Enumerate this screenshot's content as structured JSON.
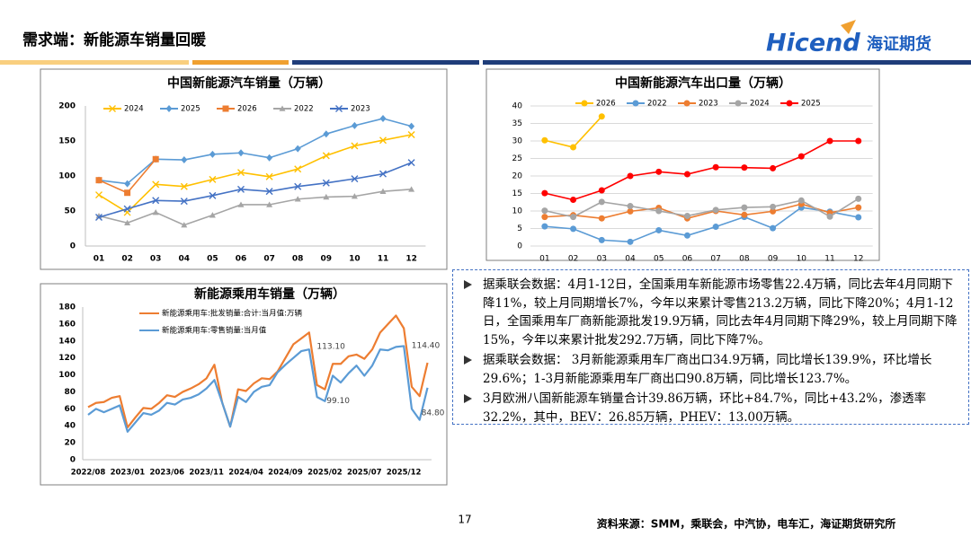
{
  "header": {
    "title": "需求端：新能源车销量回暖",
    "logo_latin": "Hicend",
    "logo_cn": "海证期货"
  },
  "chart_data": [
    {
      "type": "line",
      "title": "中国新能源汽车销量（万辆）",
      "categories": [
        "01",
        "02",
        "03",
        "04",
        "05",
        "06",
        "07",
        "08",
        "09",
        "10",
        "11",
        "12"
      ],
      "ylim": [
        0,
        200
      ],
      "yticks": [
        0,
        50,
        100,
        150,
        200
      ],
      "grid": false,
      "series": [
        {
          "name": "2024",
          "color": "#ffc000",
          "marker": "x",
          "values": [
            73,
            48,
            88,
            85,
            95,
            105,
            99,
            110,
            129,
            143,
            151,
            159
          ]
        },
        {
          "name": "2025",
          "color": "#5b9bd5",
          "marker": "diamond",
          "values": [
            94,
            89,
            124,
            123,
            131,
            133,
            126,
            139,
            160,
            172,
            182,
            171
          ]
        },
        {
          "name": "2026",
          "color": "#ed7d31",
          "marker": "square",
          "values": [
            94,
            76,
            124,
            null,
            null,
            null,
            null,
            null,
            null,
            null,
            null,
            null
          ]
        },
        {
          "name": "2022",
          "color": "#a5a5a5",
          "marker": "triangle",
          "values": [
            43,
            33,
            48,
            30,
            44,
            59,
            59,
            67,
            70,
            71,
            78,
            81
          ]
        },
        {
          "name": "2023",
          "color": "#4472c4",
          "marker": "x",
          "values": [
            41,
            53,
            65,
            64,
            72,
            81,
            78,
            85,
            90,
            96,
            103,
            119
          ]
        }
      ]
    },
    {
      "type": "line",
      "title": "中国新能源汽车出口量（万辆）",
      "categories": [
        "01",
        "02",
        "03",
        "04",
        "05",
        "06",
        "07",
        "08",
        "09",
        "10",
        "11",
        "12"
      ],
      "ylim": [
        0,
        40
      ],
      "yticks": [
        0,
        5,
        10,
        15,
        20,
        25,
        30,
        35,
        40
      ],
      "grid": true,
      "series": [
        {
          "name": "2026",
          "color": "#ffc000",
          "marker": "circle",
          "values": [
            30.2,
            28.2,
            37,
            null,
            null,
            null,
            null,
            null,
            null,
            null,
            null,
            null
          ]
        },
        {
          "name": "2022",
          "color": "#5b9bd5",
          "marker": "circle",
          "values": [
            5.6,
            4.9,
            1.7,
            1.2,
            4.5,
            3.0,
            5.5,
            8.3,
            5.1,
            11.0,
            9.8,
            8.2
          ]
        },
        {
          "name": "2023",
          "color": "#ed7d31",
          "marker": "circle",
          "values": [
            8.3,
            8.8,
            7.9,
            9.9,
            10.9,
            7.9,
            10.0,
            8.9,
            9.9,
            12.0,
            9.5,
            11.0
          ]
        },
        {
          "name": "2024",
          "color": "#a5a5a5",
          "marker": "circle",
          "values": [
            10.1,
            8.3,
            12.6,
            11.4,
            10.0,
            8.6,
            10.3,
            11.0,
            11.2,
            13.0,
            8.4,
            13.5
          ]
        },
        {
          "name": "2025",
          "color": "#ff0000",
          "marker": "circle",
          "values": [
            15.1,
            13.2,
            15.9,
            20.0,
            21.2,
            20.5,
            22.5,
            22.4,
            22.2,
            25.6,
            30.0,
            30.0
          ]
        }
      ]
    },
    {
      "type": "line",
      "title": "新能源乘用车销量（万辆）",
      "categories": [
        "2022/08",
        null,
        null,
        null,
        null,
        "2023/01",
        null,
        null,
        null,
        null,
        "2023/06",
        null,
        null,
        null,
        null,
        "2023/11",
        null,
        null,
        null,
        null,
        "2024/04",
        null,
        null,
        null,
        null,
        "2024/09",
        null,
        null,
        null,
        null,
        "2025/02",
        null,
        null,
        null,
        null,
        "2025/07",
        null,
        null,
        null,
        null,
        "2025/12",
        null,
        null,
        null
      ],
      "ylim": [
        0,
        180
      ],
      "yticks": [
        0,
        20,
        40,
        60,
        80,
        100,
        120,
        140,
        160,
        180
      ],
      "grid": false,
      "series": [
        {
          "name": "新能源乘用车:批发销量:合计:当月值:万辆",
          "color": "#ed7d31",
          "values": [
            62,
            67,
            68,
            73,
            75,
            38,
            50,
            61,
            60,
            67,
            76,
            74,
            80,
            84,
            89,
            96,
            112,
            67,
            39,
            83,
            81,
            90,
            96,
            95,
            104,
            120,
            136,
            143,
            150,
            88,
            83,
            113.1,
            113,
            122,
            124,
            119,
            130,
            150,
            160,
            170,
            155,
            86,
            75,
            114.4
          ],
          "value_labels": [
            null,
            null,
            null,
            null,
            null,
            null,
            null,
            null,
            null,
            null,
            null,
            null,
            null,
            null,
            null,
            null,
            null,
            null,
            null,
            null,
            null,
            null,
            null,
            null,
            null,
            null,
            null,
            null,
            null,
            null,
            null,
            "113.10",
            null,
            null,
            null,
            null,
            null,
            null,
            null,
            null,
            null,
            null,
            null,
            "114.40"
          ]
        },
        {
          "name": "新能源乘用车:零售销量:当月值",
          "color": "#5b9bd5",
          "values": [
            53,
            60,
            56,
            60,
            64,
            33,
            44,
            55,
            53,
            58,
            67,
            65,
            71,
            73,
            77,
            84,
            94,
            67,
            39,
            74,
            68,
            80,
            86,
            88,
            103,
            112,
            120,
            128,
            130,
            74,
            69,
            99.1,
            91,
            102,
            111,
            99,
            111,
            130,
            129,
            133,
            134,
            60,
            47,
            84.8
          ],
          "value_labels": [
            null,
            null,
            null,
            null,
            null,
            null,
            null,
            null,
            null,
            null,
            null,
            null,
            null,
            null,
            null,
            null,
            null,
            null,
            null,
            null,
            null,
            null,
            null,
            null,
            null,
            null,
            null,
            null,
            null,
            null,
            null,
            "99.10",
            null,
            null,
            null,
            null,
            null,
            null,
            null,
            null,
            null,
            null,
            null,
            "84.80"
          ]
        }
      ]
    }
  ],
  "bullets": [
    "据乘联会数据：4月1-12日，全国乘用车新能源市场零售22.4万辆，同比去年4月同期下降11%，较上月同期增长7%，今年以来累计零售213.2万辆，同比下降20%；4月1-12日，全国乘用车厂商新能源批发19.9万辆，同比去年4月同期下降29%，较上月同期下降15%，今年以来累计批发292.7万辆，同比下降7%。",
    "据乘联会数据： 3月新能源乘用车厂商出口34.9万辆，同比增长139.9%，环比增长29.6%；1-3月新能源乘用车厂商出口90.8万辆，同比增长123.7%。",
    "3月欧洲八国新能源车销量合计39.86万辆，环比+84.7%，同比+43.2%，渗透率32.2%，其中，BEV：26.85万辆，PHEV：13.00万辆。"
  ],
  "footer": {
    "page_number": "17",
    "source": "资料来源：SMM，乘联会，中汽协，电车汇，海证期货研究所"
  }
}
